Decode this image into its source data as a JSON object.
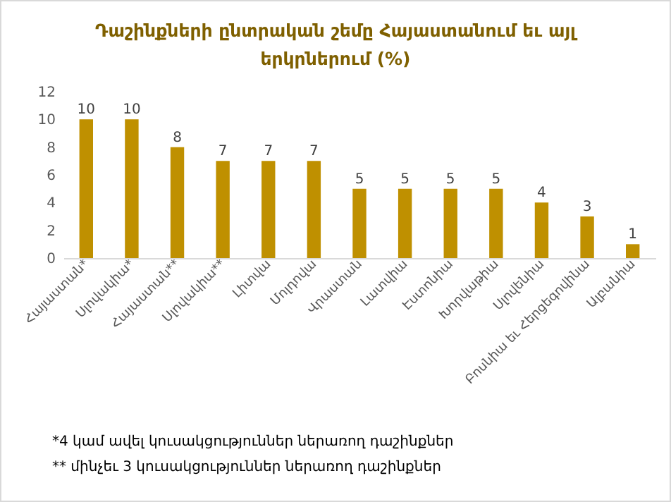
{
  "chart_data": {
    "type": "bar",
    "title": "Դաշինքների ընտրական շեմը Հայաստանում եւ այլ երկրներում (%)",
    "categories": [
      "Հայաստան*",
      "Սլովակիա*",
      "Հայաստան**",
      "Սլովակիա**",
      "Լիտվա",
      "Մոլդովա",
      "Վրաստան",
      "Լատվիա",
      "Էստոնիա",
      "Խորվաթիա",
      "Սլովենիա",
      "Բոսնիա եւ Հերցեգովինա",
      "Ալբանիա"
    ],
    "values": [
      10,
      10,
      8,
      7,
      7,
      7,
      5,
      5,
      5,
      5,
      4,
      3,
      1
    ],
    "color": "#bf9000",
    "ylim": [
      0,
      12
    ],
    "yticks": [
      0,
      2,
      4,
      6,
      8,
      10,
      12
    ],
    "data_labels": true,
    "annotations": [
      "*4 կամ ավել կուսակցություններ ներառող դաշինքներ",
      "** մինչեւ 3 կուսակցություններ ներառող դաշինքներ"
    ]
  }
}
